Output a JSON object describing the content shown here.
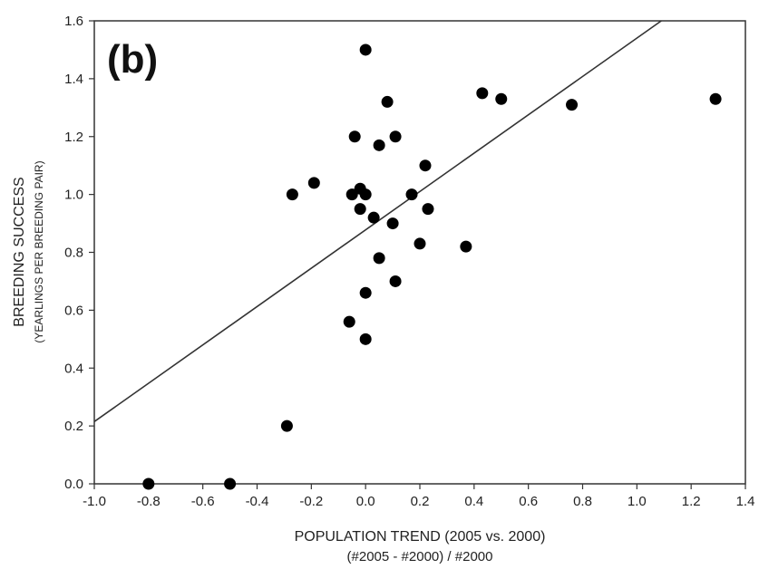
{
  "chart_data": {
    "type": "scatter",
    "panel_label": "(b)",
    "xlabel": "POPULATION TREND (2005 vs. 2000)",
    "xlabel_sub": "(#2005 - #2000) / #2000",
    "ylabel": "BREEDING SUCCESS",
    "ylabel_sub": "(YEARLINGS PER BREEDING PAIR)",
    "xlim": [
      -1.0,
      1.4
    ],
    "ylim": [
      0.0,
      1.6
    ],
    "x_ticks": [
      "-1.0",
      "-0.8",
      "-0.6",
      "-0.4",
      "-0.2",
      "0.0",
      "0.2",
      "0.4",
      "0.6",
      "0.8",
      "1.0",
      "1.2",
      "1.4"
    ],
    "x_tick_values": [
      -1.0,
      -0.8,
      -0.6,
      -0.4,
      -0.2,
      0.0,
      0.2,
      0.4,
      0.6,
      0.8,
      1.0,
      1.2,
      1.4
    ],
    "y_ticks": [
      "0.0",
      "0.2",
      "0.4",
      "0.6",
      "0.8",
      "1.0",
      "1.2",
      "1.4",
      "1.6"
    ],
    "y_tick_values": [
      0.0,
      0.2,
      0.4,
      0.6,
      0.8,
      1.0,
      1.2,
      1.4,
      1.6
    ],
    "grid": false,
    "points": [
      {
        "x": -0.8,
        "y": 0.0
      },
      {
        "x": -0.5,
        "y": 0.0
      },
      {
        "x": -0.29,
        "y": 0.2
      },
      {
        "x": -0.27,
        "y": 1.0
      },
      {
        "x": -0.19,
        "y": 1.04
      },
      {
        "x": -0.06,
        "y": 0.56
      },
      {
        "x": -0.05,
        "y": 1.0
      },
      {
        "x": -0.04,
        "y": 1.2
      },
      {
        "x": -0.02,
        "y": 1.02
      },
      {
        "x": -0.02,
        "y": 0.95
      },
      {
        "x": 0.0,
        "y": 1.5
      },
      {
        "x": 0.0,
        "y": 1.0
      },
      {
        "x": 0.0,
        "y": 0.66
      },
      {
        "x": 0.0,
        "y": 0.5
      },
      {
        "x": 0.03,
        "y": 0.92
      },
      {
        "x": 0.05,
        "y": 1.17
      },
      {
        "x": 0.05,
        "y": 0.78
      },
      {
        "x": 0.08,
        "y": 1.32
      },
      {
        "x": 0.1,
        "y": 0.9
      },
      {
        "x": 0.11,
        "y": 1.2
      },
      {
        "x": 0.11,
        "y": 0.7
      },
      {
        "x": 0.17,
        "y": 1.0
      },
      {
        "x": 0.2,
        "y": 0.83
      },
      {
        "x": 0.22,
        "y": 1.1
      },
      {
        "x": 0.23,
        "y": 0.95
      },
      {
        "x": 0.37,
        "y": 0.82
      },
      {
        "x": 0.43,
        "y": 1.35
      },
      {
        "x": 0.5,
        "y": 1.33
      },
      {
        "x": 0.76,
        "y": 1.31
      },
      {
        "x": 1.29,
        "y": 1.33
      }
    ],
    "regression_line": {
      "x1": -1.0,
      "y1": 0.215,
      "x2": 1.09,
      "y2": 1.6
    },
    "colors": {
      "points": "#000000",
      "line": "#333333",
      "axis": "#333333"
    }
  }
}
